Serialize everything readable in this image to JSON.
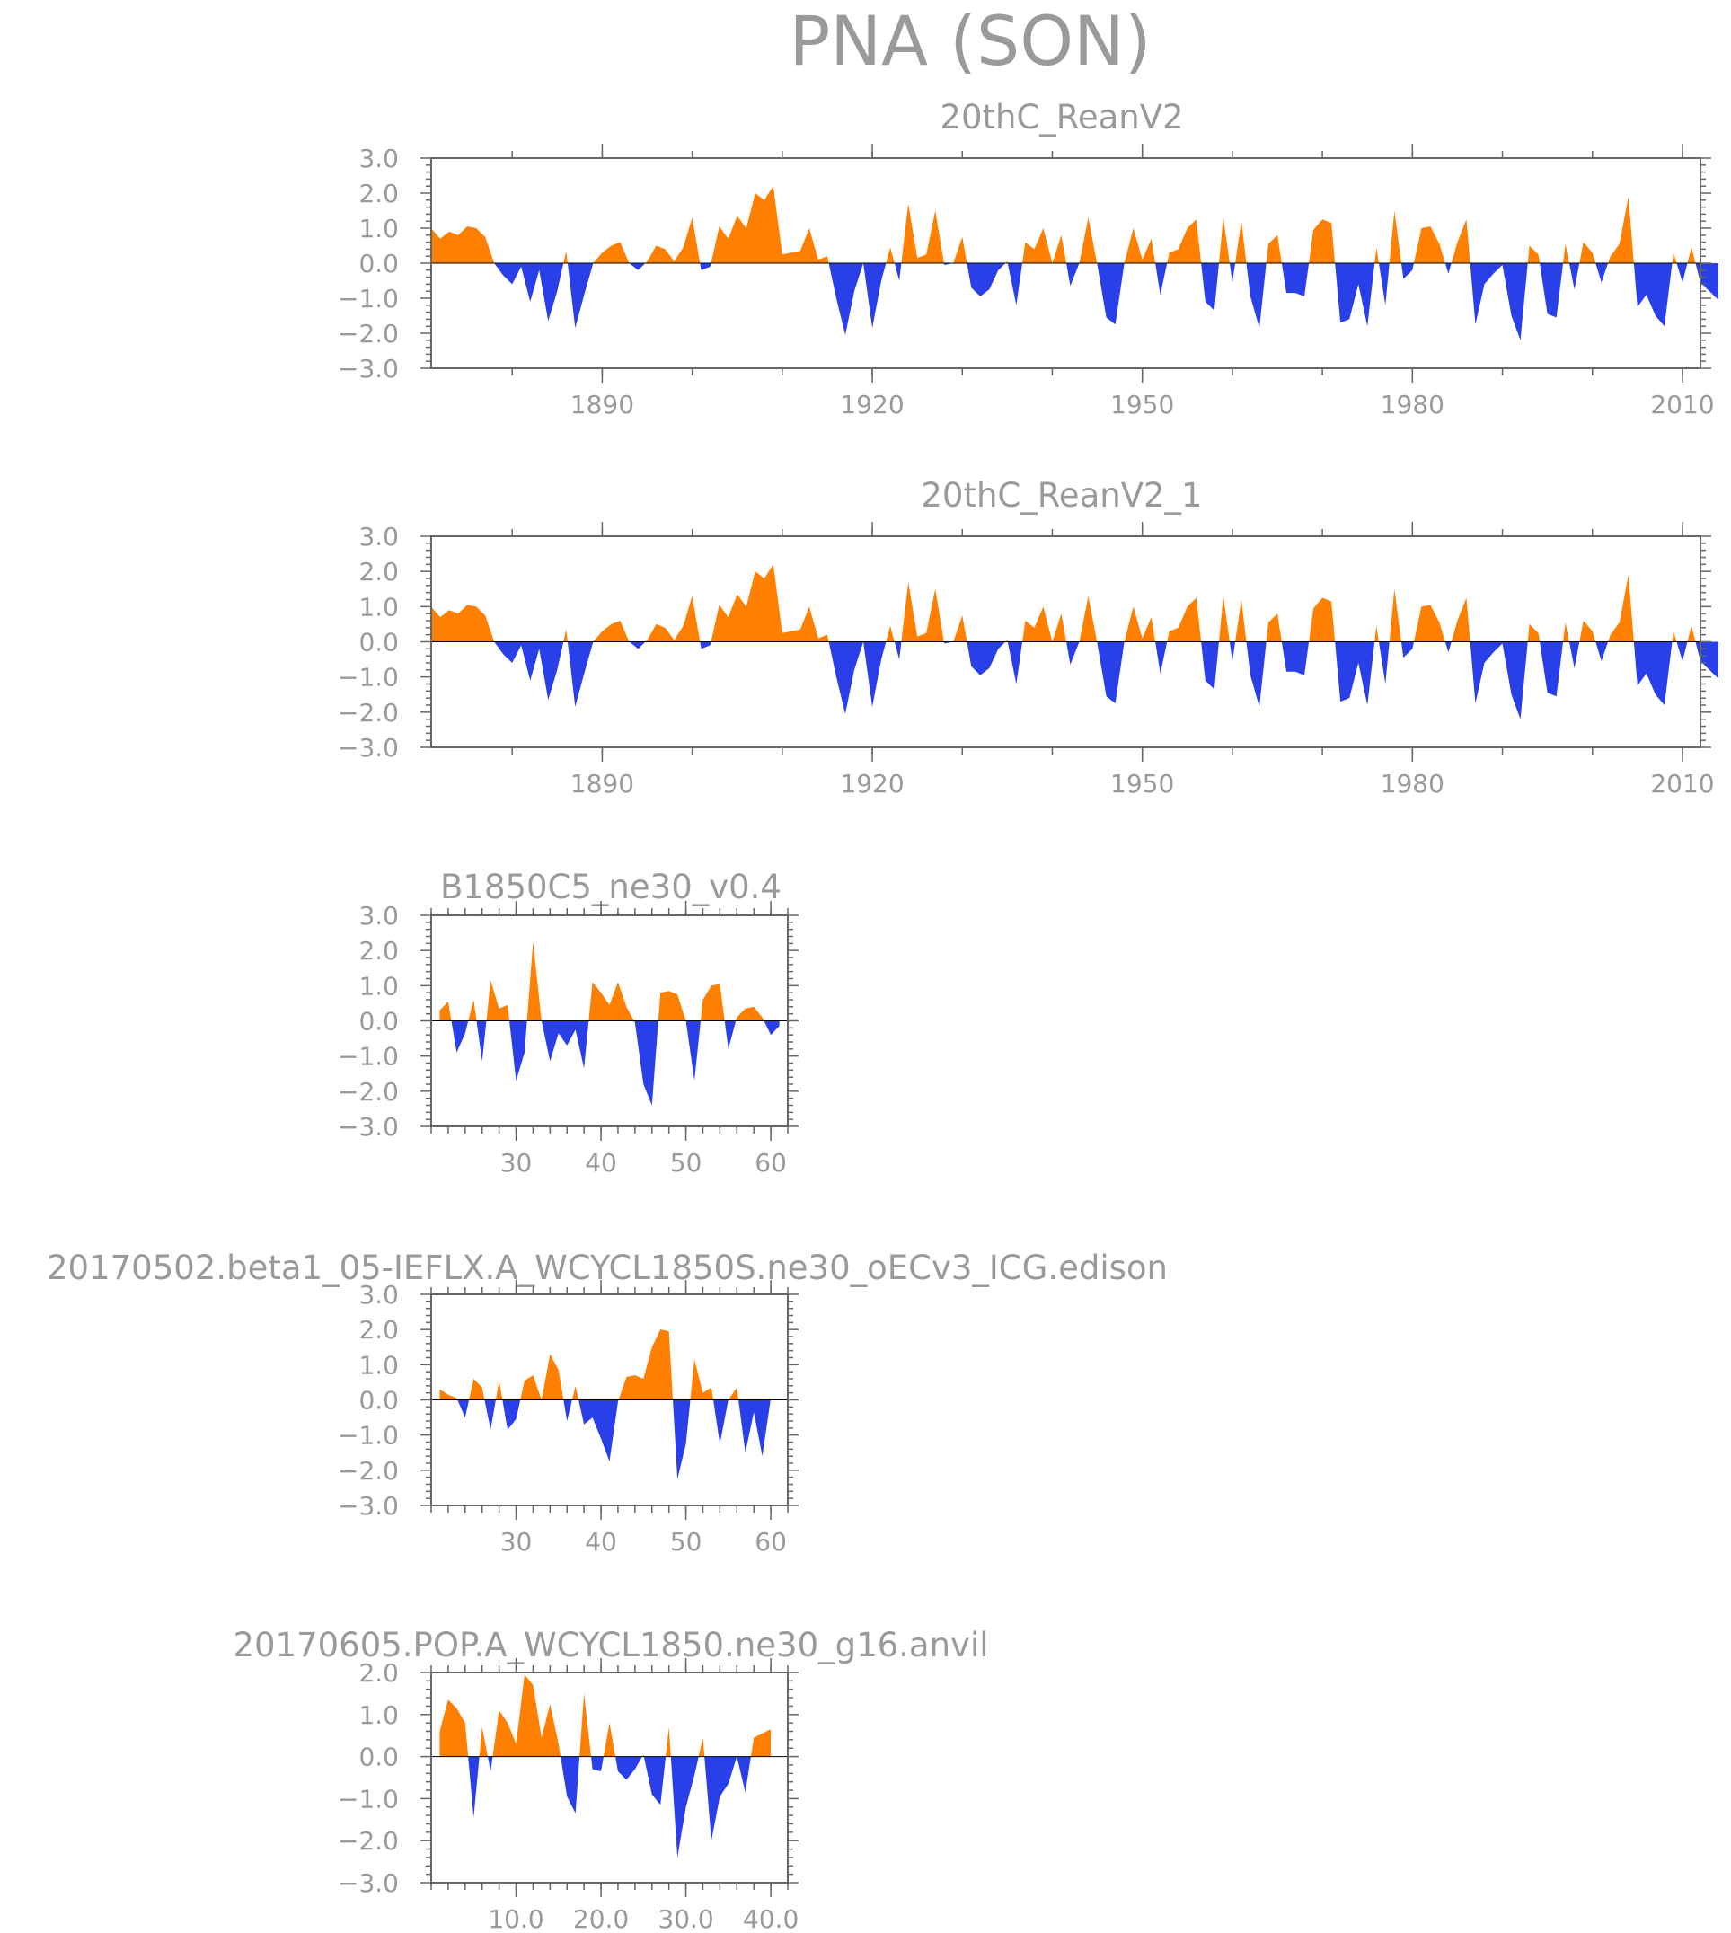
{
  "main_title": "PNA (SON)",
  "colors": {
    "positive": "#ff7f00",
    "negative": "#2940e8",
    "text": "#9a9a9a"
  },
  "chart_data": [
    {
      "type": "area",
      "title": "20thC_ReanV2",
      "xlabel": "",
      "ylabel": "",
      "ylim": [
        -3,
        3
      ],
      "y_ticks": [
        "3.0",
        "2.0",
        "1.0",
        "0.0",
        "−1.0",
        "−2.0",
        "−3.0"
      ],
      "x_range": [
        1871,
        2012
      ],
      "x_ticks": [
        "1890",
        "1920",
        "1950",
        "1980",
        "2010"
      ],
      "x_start": 1871,
      "values": [
        1.0,
        0.7,
        0.9,
        0.8,
        1.05,
        1.0,
        0.75,
        0.0,
        -0.35,
        -0.6,
        -0.1,
        -1.1,
        -0.2,
        -1.65,
        -0.8,
        0.35,
        -1.85,
        -0.9,
        0.0,
        0.3,
        0.5,
        0.6,
        0.0,
        -0.2,
        0.05,
        0.5,
        0.4,
        0.05,
        0.45,
        1.3,
        -0.2,
        -0.1,
        1.05,
        0.7,
        1.35,
        1.0,
        2.0,
        1.8,
        2.2,
        0.25,
        0.3,
        0.35,
        1.0,
        0.1,
        0.2,
        -1.0,
        -2.05,
        -0.8,
        0.0,
        -1.85,
        -0.5,
        0.45,
        -0.5,
        1.7,
        0.15,
        0.25,
        1.5,
        -0.05,
        0.0,
        0.75,
        -0.7,
        -0.95,
        -0.75,
        -0.2,
        0.05,
        -1.2,
        0.6,
        0.4,
        1.0,
        0.0,
        0.8,
        -0.65,
        0.0,
        1.3,
        -0.05,
        -1.55,
        -1.75,
        0.0,
        1.0,
        0.1,
        0.7,
        -0.9,
        0.3,
        0.4,
        1.0,
        1.25,
        -1.1,
        -1.35,
        1.3,
        -0.55,
        1.2,
        -0.95,
        -1.85,
        0.55,
        0.8,
        -0.85,
        -0.85,
        -0.95,
        0.95,
        1.25,
        1.15,
        -1.7,
        -1.6,
        -0.6,
        -1.8,
        0.45,
        -1.2,
        1.5,
        -0.45,
        -0.2,
        1.0,
        1.05,
        0.55,
        -0.3,
        0.6,
        1.25,
        -1.75,
        -0.6,
        -0.3,
        -0.05,
        -1.5,
        -2.2,
        0.5,
        0.25,
        -1.45,
        -1.55,
        0.55,
        -0.75,
        0.6,
        0.3,
        -0.55,
        0.2,
        0.55,
        1.9,
        -1.25,
        -0.9,
        -1.5,
        -1.8,
        0.3,
        -0.55,
        0.45,
        -0.55,
        -0.8,
        -1.05
      ]
    },
    {
      "type": "area",
      "title": "20thC_ReanV2_1",
      "xlabel": "",
      "ylabel": "",
      "ylim": [
        -3,
        3
      ],
      "y_ticks": [
        "3.0",
        "2.0",
        "1.0",
        "0.0",
        "−1.0",
        "−2.0",
        "−3.0"
      ],
      "x_range": [
        1871,
        2012
      ],
      "x_ticks": [
        "1890",
        "1920",
        "1950",
        "1980",
        "2010"
      ],
      "x_start": 1871,
      "values": [
        1.0,
        0.7,
        0.9,
        0.8,
        1.05,
        1.0,
        0.75,
        0.0,
        -0.35,
        -0.6,
        -0.1,
        -1.1,
        -0.2,
        -1.65,
        -0.8,
        0.35,
        -1.85,
        -0.9,
        0.0,
        0.3,
        0.5,
        0.6,
        0.0,
        -0.2,
        0.05,
        0.5,
        0.4,
        0.05,
        0.45,
        1.3,
        -0.2,
        -0.1,
        1.05,
        0.7,
        1.35,
        1.0,
        2.0,
        1.8,
        2.2,
        0.25,
        0.3,
        0.35,
        1.0,
        0.1,
        0.2,
        -1.0,
        -2.05,
        -0.8,
        0.0,
        -1.85,
        -0.5,
        0.45,
        -0.5,
        1.7,
        0.15,
        0.25,
        1.5,
        -0.05,
        0.0,
        0.75,
        -0.7,
        -0.95,
        -0.75,
        -0.2,
        0.05,
        -1.2,
        0.6,
        0.4,
        1.0,
        0.0,
        0.8,
        -0.65,
        0.0,
        1.3,
        -0.05,
        -1.55,
        -1.75,
        0.0,
        1.0,
        0.1,
        0.7,
        -0.9,
        0.3,
        0.4,
        1.0,
        1.25,
        -1.1,
        -1.35,
        1.3,
        -0.55,
        1.2,
        -0.95,
        -1.85,
        0.55,
        0.8,
        -0.85,
        -0.85,
        -0.95,
        0.95,
        1.25,
        1.15,
        -1.7,
        -1.6,
        -0.6,
        -1.8,
        0.45,
        -1.2,
        1.5,
        -0.45,
        -0.2,
        1.0,
        1.05,
        0.55,
        -0.3,
        0.6,
        1.25,
        -1.75,
        -0.6,
        -0.3,
        -0.05,
        -1.5,
        -2.2,
        0.5,
        0.25,
        -1.45,
        -1.55,
        0.55,
        -0.75,
        0.6,
        0.3,
        -0.55,
        0.2,
        0.55,
        1.9,
        -1.25,
        -0.9,
        -1.5,
        -1.8,
        0.3,
        -0.55,
        0.45,
        -0.55,
        -0.8,
        -1.05
      ]
    },
    {
      "type": "area",
      "title": "B1850C5_ne30_v0.4",
      "xlabel": "",
      "ylabel": "",
      "ylim": [
        -3,
        3
      ],
      "y_ticks": [
        "3.0",
        "2.0",
        "1.0",
        "0.0",
        "−1.0",
        "−2.0",
        "−3.0"
      ],
      "x_range": [
        20,
        62
      ],
      "x_ticks": [
        "30",
        "40",
        "50",
        "60"
      ],
      "x_start": 21,
      "values": [
        0.3,
        0.55,
        -0.9,
        -0.35,
        0.6,
        -1.15,
        1.15,
        0.35,
        0.45,
        -1.7,
        -0.9,
        2.25,
        0.0,
        -1.15,
        -0.35,
        -0.7,
        -0.25,
        -1.35,
        1.1,
        0.8,
        0.45,
        1.1,
        0.4,
        -0.05,
        -1.8,
        -2.4,
        0.8,
        0.85,
        0.75,
        0.0,
        -1.7,
        0.6,
        1.0,
        1.05,
        -0.8,
        0.1,
        0.35,
        0.4,
        0.1,
        -0.4,
        -0.15
      ]
    },
    {
      "type": "area",
      "title": "20170502.beta1_05-IEFLX.A_WCYCL1850S.ne30_oECv3_ICG.edison",
      "xlabel": "",
      "ylabel": "",
      "ylim": [
        -3,
        3
      ],
      "y_ticks": [
        "3.0",
        "2.0",
        "1.0",
        "0.0",
        "−1.0",
        "−2.0",
        "−3.0"
      ],
      "x_range": [
        20,
        62
      ],
      "x_ticks": [
        "30",
        "40",
        "50",
        "60"
      ],
      "x_start": 21,
      "values": [
        0.3,
        0.15,
        0.05,
        -0.5,
        0.6,
        0.35,
        -0.85,
        0.55,
        -0.85,
        -0.55,
        0.55,
        0.7,
        0.0,
        1.3,
        0.85,
        -0.6,
        0.4,
        -0.7,
        -0.5,
        -1.1,
        -1.75,
        -0.05,
        0.65,
        0.7,
        0.6,
        1.5,
        2.0,
        1.95,
        -2.25,
        -1.25,
        1.15,
        0.2,
        0.35,
        -1.25,
        0.0,
        0.35,
        -1.5,
        -0.35,
        -1.6,
        0.05
      ]
    },
    {
      "type": "area",
      "title": "20170605.POP.A_WCYCL1850.ne30_g16.anvil",
      "xlabel": "",
      "ylabel": "",
      "ylim": [
        -3,
        2
      ],
      "y_ticks": [
        "2.0",
        "1.0",
        "0.0",
        "−1.0",
        "−2.0",
        "−3.0"
      ],
      "x_range": [
        0,
        42
      ],
      "x_ticks": [
        "10.0",
        "20.0",
        "30.0",
        "40.0"
      ],
      "x_start": 1,
      "values": [
        0.6,
        1.35,
        1.15,
        0.8,
        -1.45,
        0.7,
        -0.35,
        1.1,
        0.8,
        0.3,
        1.95,
        1.7,
        0.45,
        1.25,
        0.3,
        -0.95,
        -1.35,
        1.5,
        -0.3,
        -0.35,
        0.8,
        -0.35,
        -0.55,
        -0.3,
        0.05,
        -0.9,
        -1.15,
        0.7,
        -2.4,
        -1.2,
        -0.45,
        0.45,
        -2.0,
        -0.95,
        -0.65,
        0.0,
        -0.85,
        0.45,
        0.55,
        0.65
      ]
    }
  ]
}
